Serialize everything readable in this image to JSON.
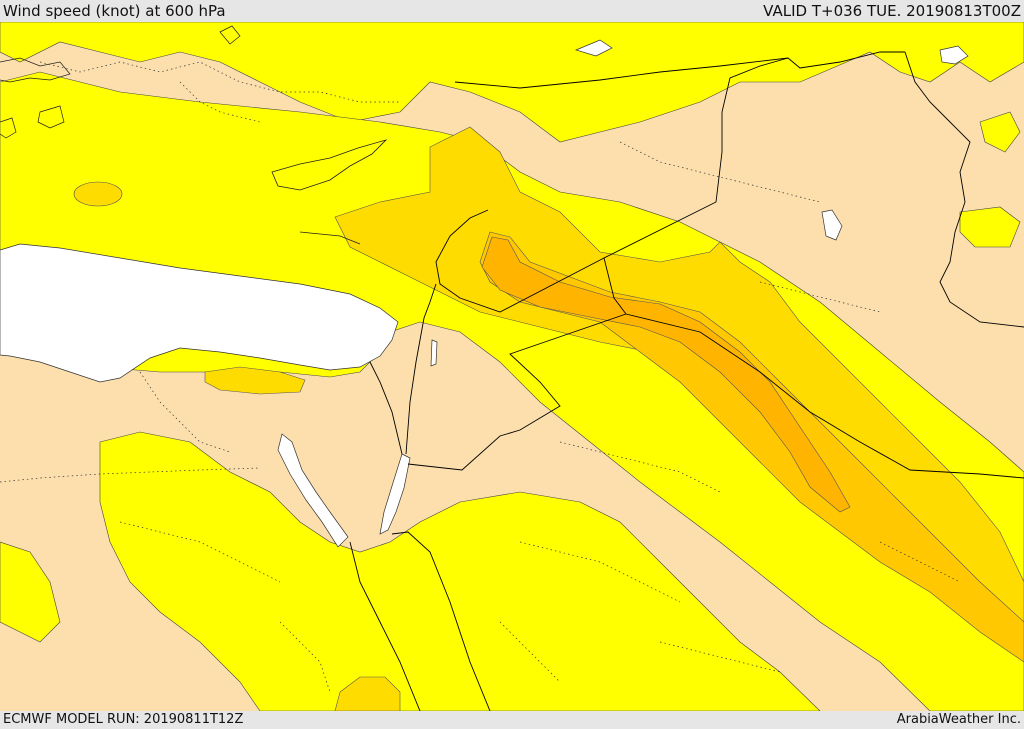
{
  "header": {
    "title": "Wind speed (knot) at 600 hPa",
    "valid": "VALID T+036 TUE. 20190813T00Z"
  },
  "footer": {
    "model_run": "ECMWF MODEL RUN: 20190811T12Z",
    "credit": "ArabiaWeather Inc."
  },
  "map": {
    "colors": {
      "land": "#fcdfac",
      "band_light": "#ffff00",
      "band_medium": "#ffdc00",
      "band_strong": "#ffc800",
      "band_strongest": "#ffb400",
      "sea": "#ffffff",
      "borders": "#000000"
    }
  }
}
